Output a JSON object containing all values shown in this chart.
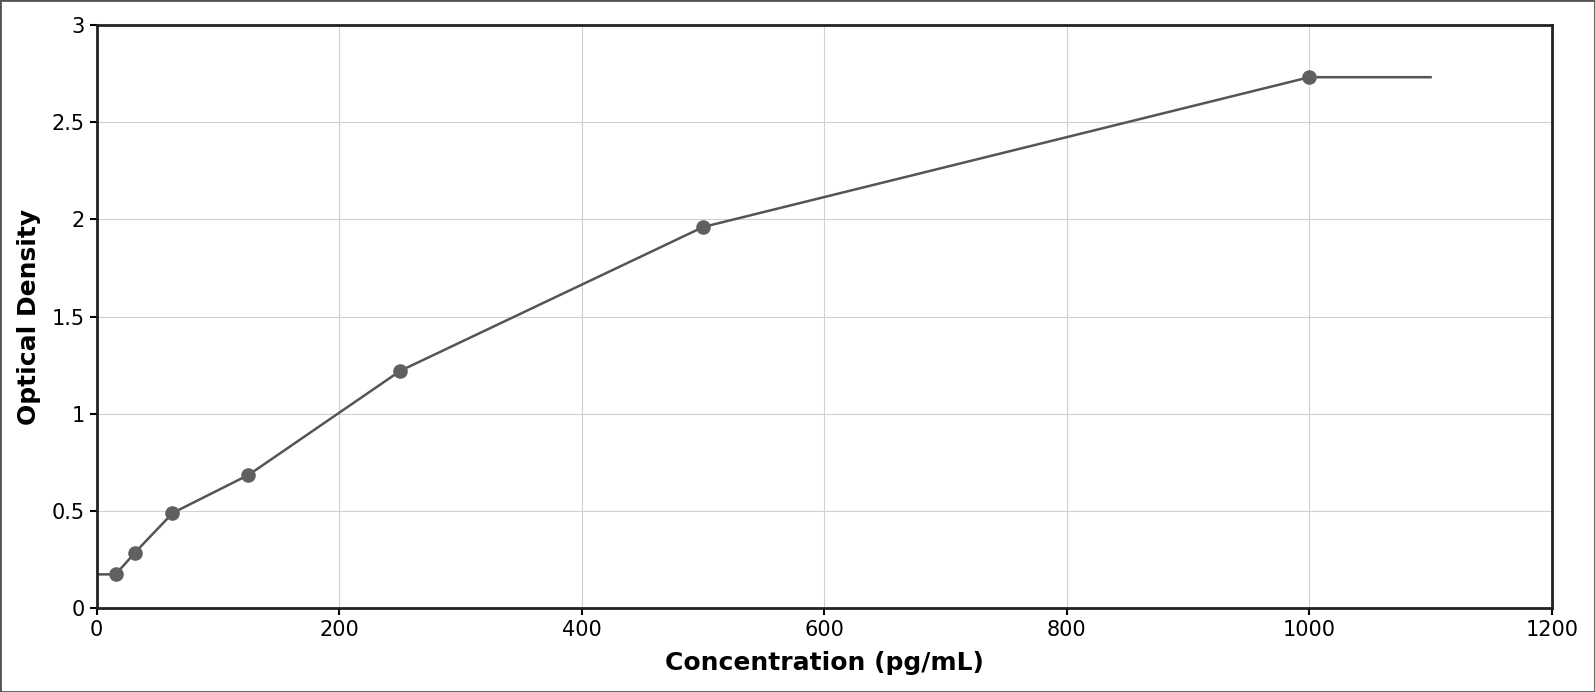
{
  "x_data": [
    15.625,
    31.25,
    62.5,
    125,
    250,
    500,
    1000
  ],
  "y_data": [
    0.175,
    0.285,
    0.49,
    0.685,
    1.22,
    1.96,
    2.73
  ],
  "xlabel": "Concentration (pg/mL)",
  "ylabel": "Optical Density",
  "xlim": [
    0,
    1200
  ],
  "ylim": [
    0,
    3.0
  ],
  "xticks": [
    0,
    200,
    400,
    600,
    800,
    1000,
    1200
  ],
  "yticks": [
    0,
    0.5,
    1.0,
    1.5,
    2.0,
    2.5,
    3.0
  ],
  "ytick_labels": [
    "0",
    "0.5",
    "1",
    "1.5",
    "2",
    "2.5",
    "3"
  ],
  "dot_color": "#606060",
  "line_color": "#555555",
  "grid_color": "#d0d0d0",
  "background_color": "#ffffff",
  "border_color": "#222222",
  "xlabel_fontsize": 18,
  "ylabel_fontsize": 18,
  "tick_fontsize": 15,
  "dot_size": 90,
  "line_width": 1.8,
  "figure_bg": "#ffffff",
  "outer_border_color": "#555555",
  "outer_border_lw": 2.0
}
